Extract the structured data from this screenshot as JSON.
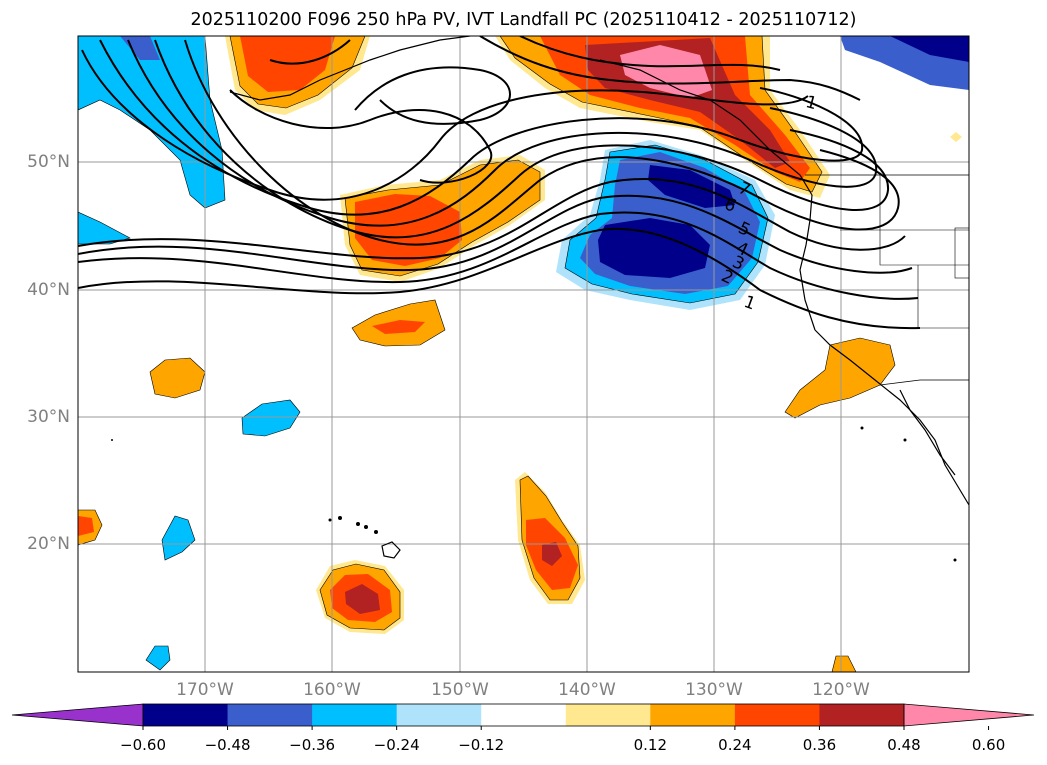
{
  "title": "2025110200 F096 250 hPa PV, IVT Landfall PC (2025110412 - 2025110712)",
  "map": {
    "lat_labels": [
      "50°N",
      "40°N",
      "30°N",
      "20°N"
    ],
    "lon_labels": [
      "170°W",
      "160°W",
      "150°W",
      "140°W",
      "130°W",
      "120°W"
    ],
    "contour_labels": [
      "1",
      "7",
      "6",
      "5",
      "4",
      "3",
      "2",
      "1"
    ],
    "fill_colors": {
      "neg_048_060": "#00008b",
      "neg_036_048": "#3a5fcd",
      "neg_024_036": "#00bfff",
      "neg_012_024": "#afe3fb",
      "pos_012_024": "#ffe890",
      "pos_024_036": "#ffa500",
      "pos_036_048": "#ff4500",
      "pos_048_060": "#b22222",
      "pos_060_plus": "#ff88aa"
    }
  },
  "colorbar": {
    "ticks": [
      "−0.60",
      "−0.48",
      "−0.36",
      "−0.24",
      "−0.12",
      "0.12",
      "0.24",
      "0.36",
      "0.48",
      "0.60"
    ],
    "colors": [
      "#9932cc",
      "#00008b",
      "#3a5fcd",
      "#00bfff",
      "#afe3fb",
      "#ffffff",
      "#ffe890",
      "#ffa500",
      "#ff4500",
      "#b22222",
      "#ff88aa"
    ]
  }
}
